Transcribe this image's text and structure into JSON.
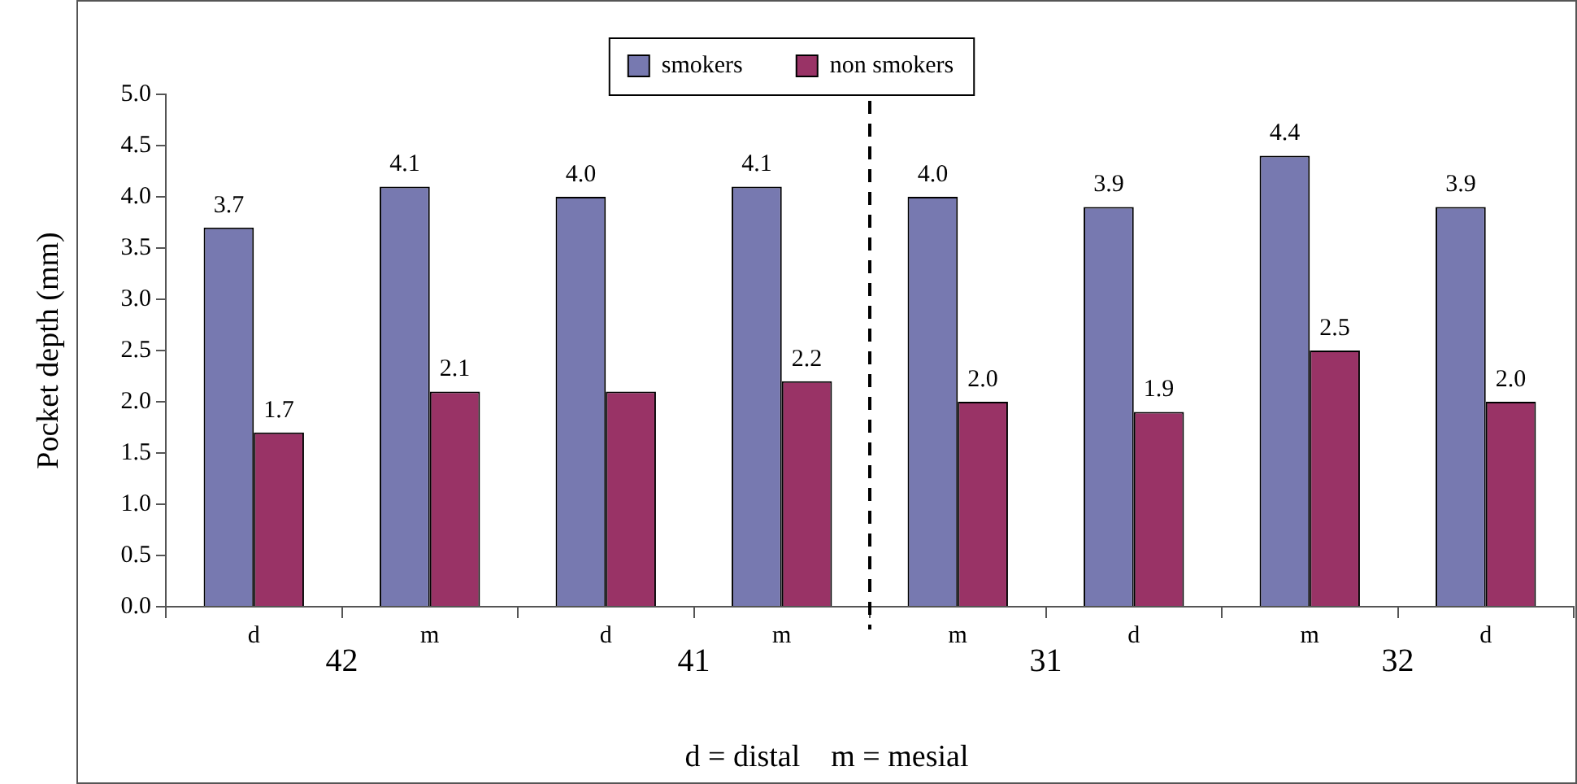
{
  "chart_data": {
    "type": "bar",
    "ylabel": "Pocket depth (mm)",
    "categories": [
      "d",
      "m",
      "d",
      "m",
      "m",
      "d",
      "m",
      "d"
    ],
    "series": [
      {
        "name": "smokers",
        "color": "#7779b0",
        "values": [
          3.7,
          4.1,
          4.0,
          4.1,
          4.0,
          3.9,
          4.4,
          3.9
        ],
        "value_labels": [
          "3.7",
          "4.1",
          "4.0",
          "4.1",
          "4.0",
          "3.9",
          "4.4",
          "3.9"
        ]
      },
      {
        "name": "non smokers",
        "color": "#993366",
        "values": [
          1.7,
          2.1,
          2.1,
          2.2,
          2.0,
          1.9,
          2.5,
          2.0
        ],
        "value_labels": [
          "1.7",
          "2.1",
          null,
          "2.2",
          "2.0",
          "1.9",
          "2.5",
          "2.0"
        ]
      }
    ],
    "ylim": [
      0,
      5
    ],
    "yticks": [
      {
        "value": 0,
        "label": "0.0"
      },
      {
        "value": 0.5,
        "label": "0.5"
      },
      {
        "value": 1,
        "label": "1.0"
      },
      {
        "value": 1.5,
        "label": "1.5"
      },
      {
        "value": 2,
        "label": "2.0"
      },
      {
        "value": 2.5,
        "label": "2.5"
      },
      {
        "value": 3,
        "label": "3.0"
      },
      {
        "value": 3.5,
        "label": "3.5"
      },
      {
        "value": 4,
        "label": "4.0"
      },
      {
        "value": 4.5,
        "label": "4.5"
      },
      {
        "value": 5,
        "label": "5.0"
      }
    ],
    "grid": false,
    "legend": "top",
    "annotations": [
      "42",
      "41",
      "31",
      "32",
      "d = distal    m = mesial"
    ]
  }
}
